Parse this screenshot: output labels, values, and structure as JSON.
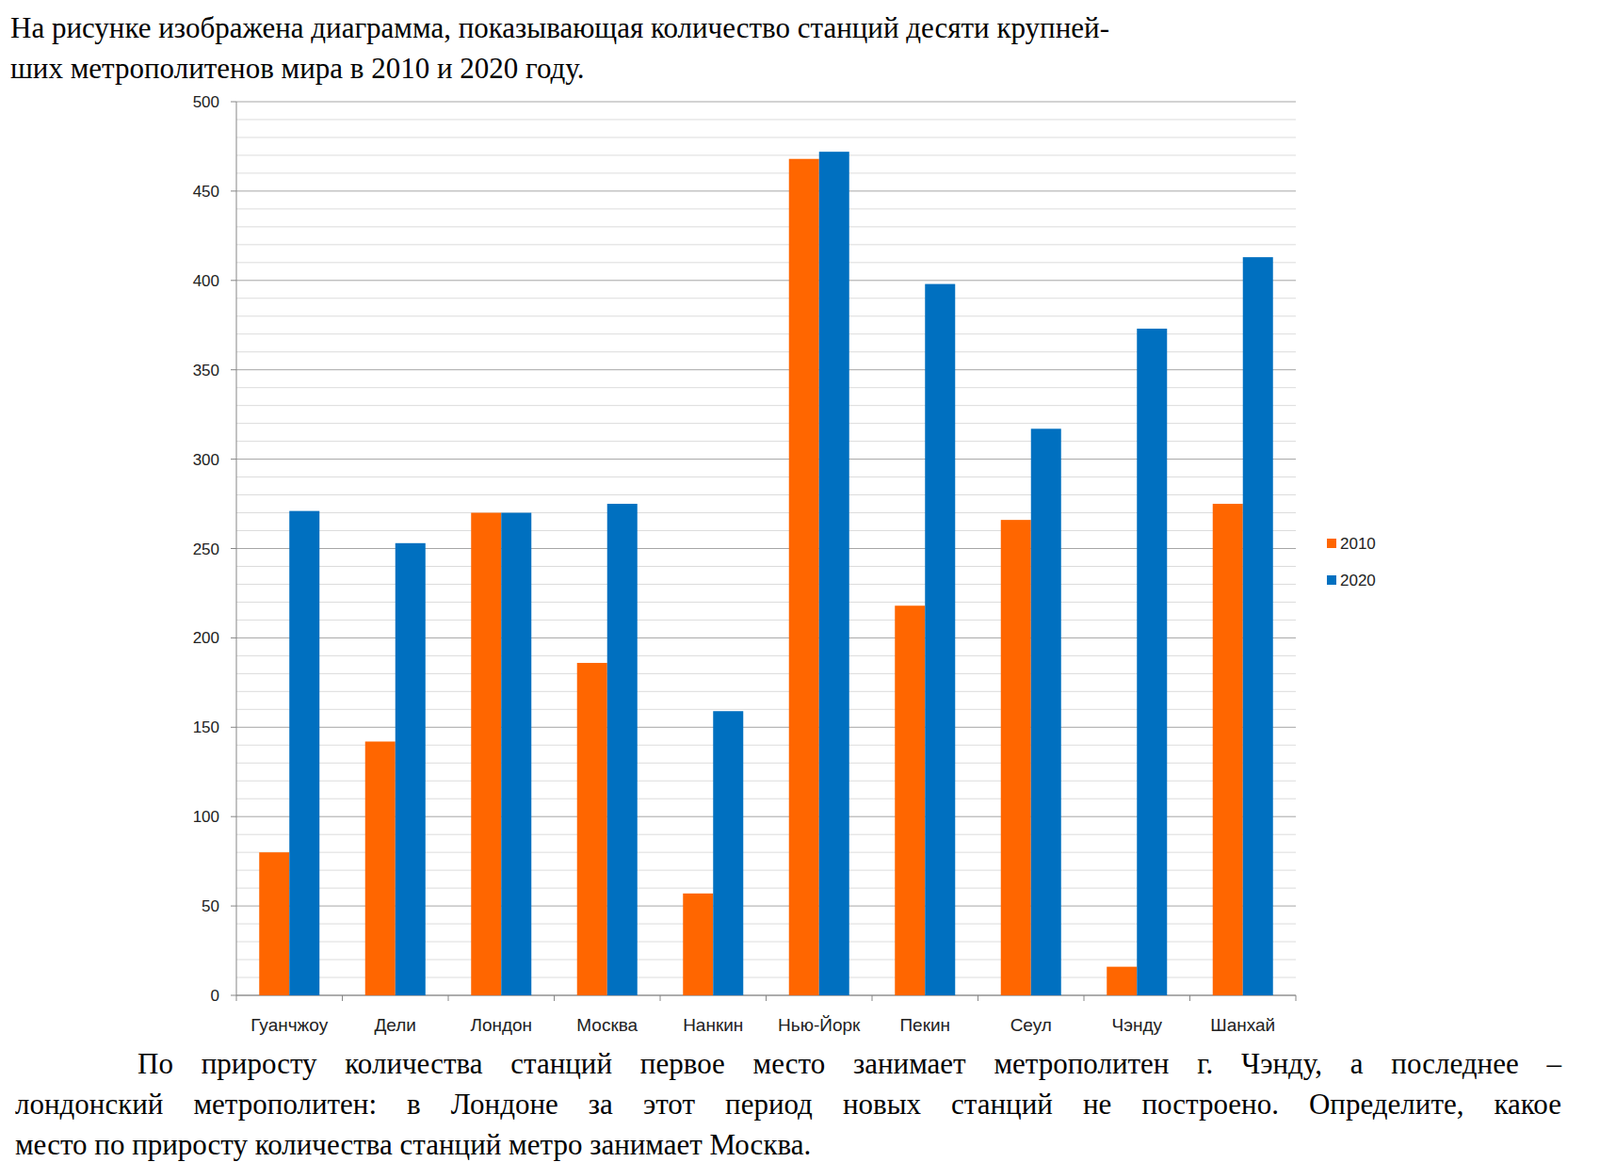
{
  "intro": [
    "На рисунке изображена диаграмма, показывающая количество станций десяти крупней-",
    "ших метрополитенов мира в 2010 и 2020 году."
  ],
  "chart_data": {
    "type": "bar",
    "categories": [
      "Гуанчжоу",
      "Дели",
      "Лондон",
      "Москва",
      "Нанкин",
      "Нью-Йорк",
      "Пекин",
      "Сеул",
      "Чэнду",
      "Шанхай"
    ],
    "series": [
      {
        "name": "2010",
        "color": "#ff6600",
        "values": [
          80,
          142,
          270,
          186,
          57,
          468,
          218,
          266,
          16,
          275
        ]
      },
      {
        "name": "2020",
        "color": "#0070c0",
        "values": [
          271,
          253,
          270,
          275,
          159,
          472,
          398,
          317,
          373,
          413
        ]
      }
    ],
    "ylim": [
      0,
      500
    ],
    "yticks": [
      0,
      50,
      100,
      150,
      200,
      250,
      300,
      350,
      400,
      450,
      500
    ],
    "grid": true,
    "legend": "right"
  },
  "question": [
    "По приросту количества станций первое место занимает метрополитен г. Чэнду, а последнее –",
    "лондонский метрополитен: в Лондоне за этот период новых станций не построено. Определите, какое",
    "место по приросту количества станций метро занимает Москва."
  ]
}
